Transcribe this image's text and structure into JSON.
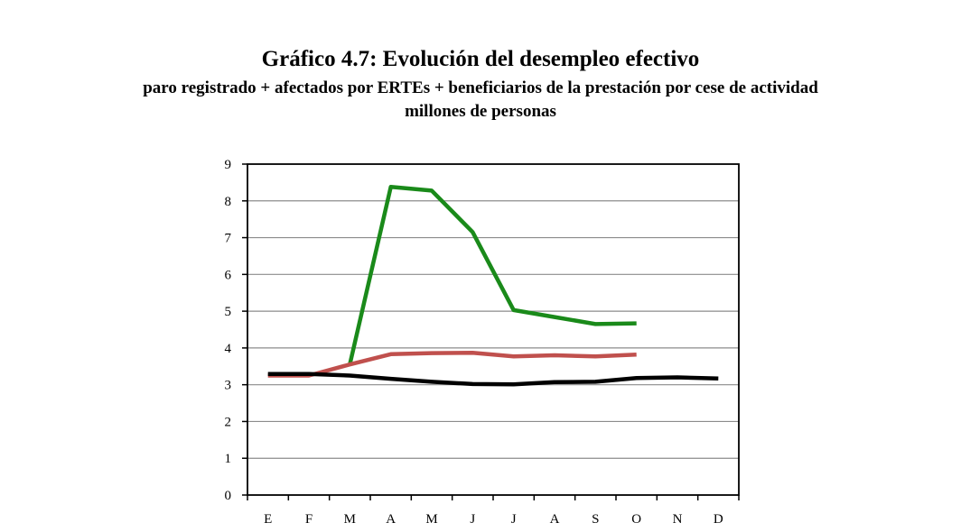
{
  "chart_data": {
    "type": "line",
    "title": "Gráfico 4.7: Evolución del desempleo efectivo",
    "subtitle": "paro registrado + afectados por ERTEs + beneficiarios de la prestación por cese de actividad",
    "units": "millones de personas",
    "xlabel": "",
    "ylabel": "",
    "categories": [
      "E",
      "F",
      "M",
      "A",
      "M",
      "J",
      "J",
      "A",
      "S",
      "O",
      "N",
      "D"
    ],
    "ylim": [
      0,
      9
    ],
    "yticks": [
      0,
      1,
      2,
      3,
      4,
      5,
      6,
      7,
      8,
      9
    ],
    "grid": true,
    "legend": "none",
    "series": [
      {
        "color": "#1a8a1a",
        "values": [
          null,
          null,
          3.55,
          8.38,
          8.28,
          7.15,
          5.03,
          4.84,
          4.65,
          4.67,
          null,
          null
        ]
      },
      {
        "color": "#c0504d",
        "values": [
          3.25,
          3.25,
          3.55,
          3.83,
          3.86,
          3.87,
          3.77,
          3.8,
          3.77,
          3.82,
          null,
          null
        ]
      },
      {
        "color": "#000000",
        "values": [
          3.29,
          3.29,
          3.25,
          3.16,
          3.08,
          3.02,
          3.01,
          3.07,
          3.08,
          3.18,
          3.2,
          3.17
        ]
      }
    ]
  }
}
